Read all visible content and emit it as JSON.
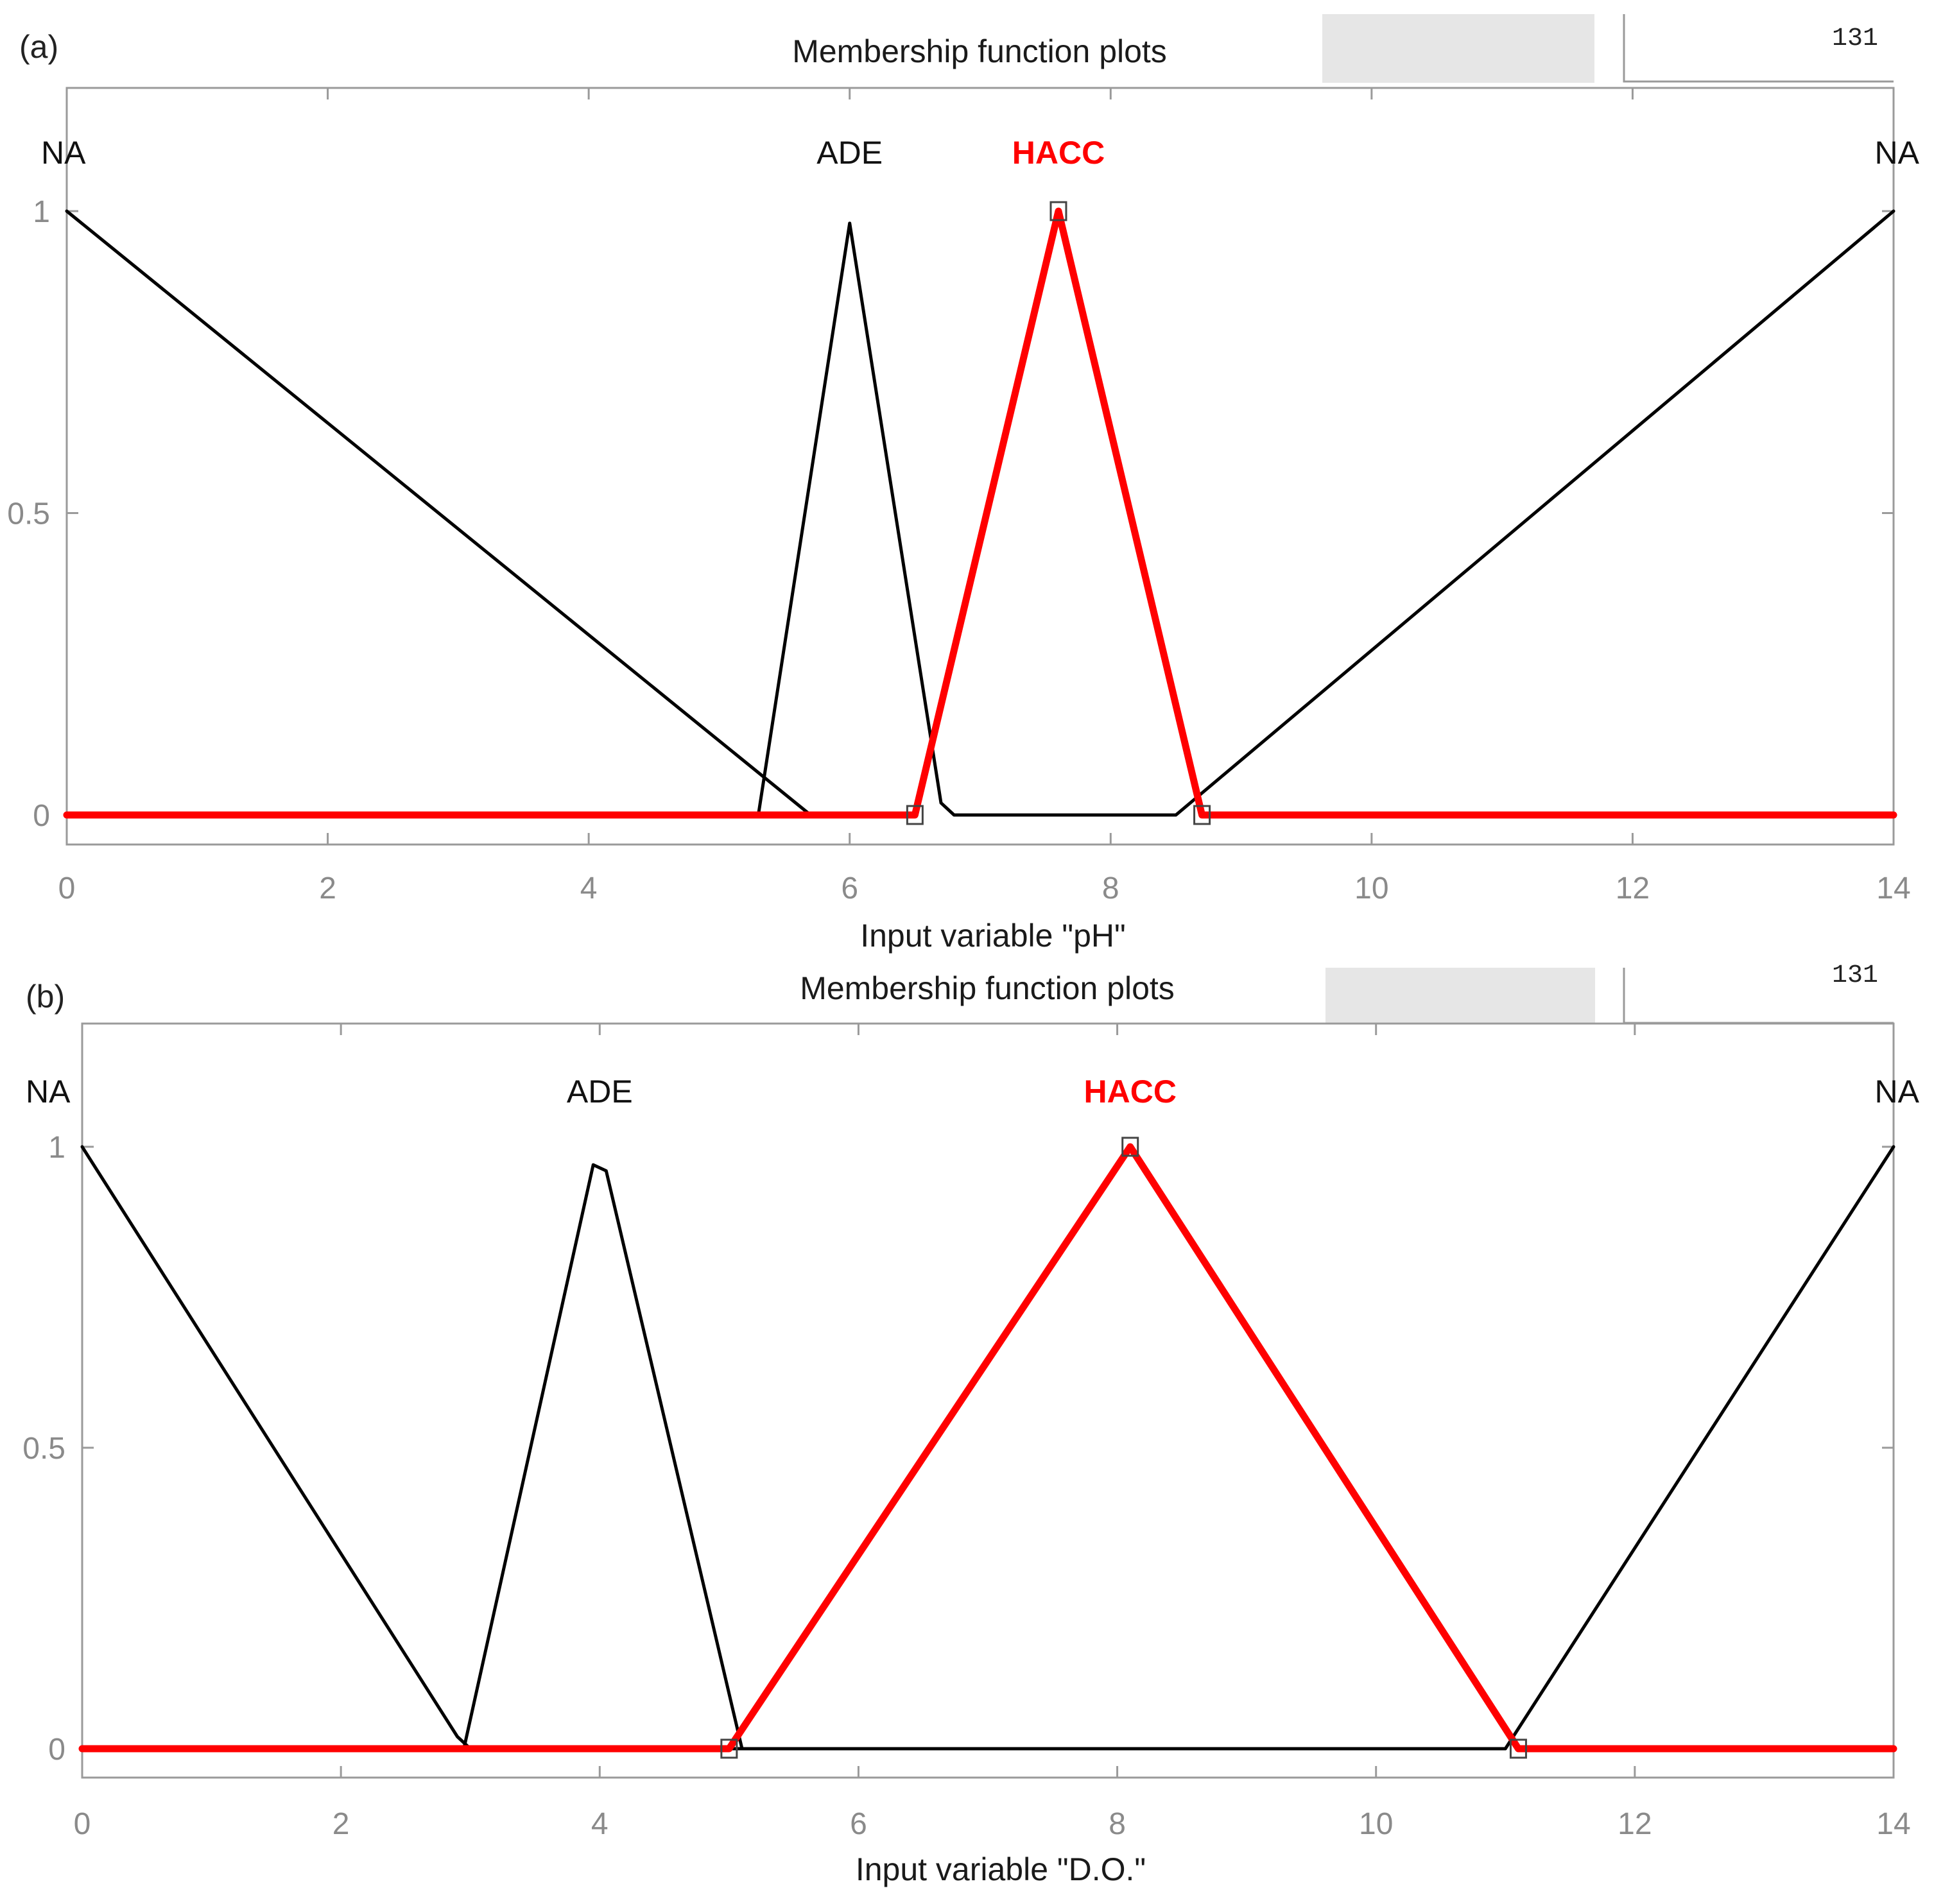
{
  "chart_data": [
    {
      "type": "line",
      "panel_label": "(a)",
      "title": "Membership function plots",
      "xlabel": "Input variable \"pH\"",
      "ylabel": "",
      "xlim": [
        0,
        14
      ],
      "ylim": [
        0,
        1
      ],
      "x_ticks": [
        "0",
        "2",
        "4",
        "6",
        "8",
        "10",
        "12",
        "14"
      ],
      "y_ticks": [
        "0",
        "0.5",
        "1"
      ],
      "toolbar_glyph": "131",
      "series": [
        {
          "name": "NA",
          "color": "#000000",
          "highlight": false,
          "label_x": 0,
          "x": [
            0,
            5.7
          ],
          "y": [
            1,
            0
          ]
        },
        {
          "name": "ADE",
          "color": "#000000",
          "highlight": false,
          "label_x": 6,
          "x": [
            5.3,
            6.0,
            6.7,
            6.8
          ],
          "y": [
            0,
            0.98,
            0.02,
            0
          ]
        },
        {
          "name": "HACC",
          "color": "#ff0000",
          "highlight": true,
          "label_x": 7.6,
          "x": [
            0,
            6.5,
            7.6,
            8.7,
            14
          ],
          "y": [
            0,
            0,
            1,
            0,
            0
          ]
        },
        {
          "name": "NA",
          "color": "#000000",
          "highlight": false,
          "label_x": 14,
          "x": [
            8.5,
            14
          ],
          "y": [
            0,
            1
          ]
        }
      ],
      "baseline_black": [
        6.8,
        8.5
      ],
      "markers": [
        [
          6.5,
          0
        ],
        [
          7.6,
          1
        ],
        [
          8.7,
          0
        ]
      ]
    },
    {
      "type": "line",
      "panel_label": "(b)",
      "title": "Membership function plots",
      "xlabel": "Input variable \"D.O.\"",
      "ylabel": "",
      "xlim": [
        0,
        14
      ],
      "ylim": [
        0,
        1
      ],
      "x_ticks": [
        "0",
        "2",
        "4",
        "6",
        "8",
        "10",
        "12",
        "14"
      ],
      "y_ticks": [
        "0",
        "0.5",
        "1"
      ],
      "toolbar_glyph": "131",
      "series": [
        {
          "name": "NA",
          "color": "#000000",
          "highlight": false,
          "label_x": 0,
          "x": [
            0,
            2.9,
            3.0
          ],
          "y": [
            1,
            0.02,
            0
          ]
        },
        {
          "name": "ADE",
          "color": "#000000",
          "highlight": false,
          "label_x": 4,
          "x": [
            2.95,
            3.95,
            4.05,
            5.1
          ],
          "y": [
            0,
            0.97,
            0.96,
            0
          ]
        },
        {
          "name": "HACC",
          "color": "#ff0000",
          "highlight": true,
          "label_x": 8.1,
          "x": [
            0,
            5.0,
            8.1,
            11.1,
            14
          ],
          "y": [
            0,
            0,
            1,
            0,
            0
          ]
        },
        {
          "name": "NA",
          "color": "#000000",
          "highlight": false,
          "label_x": 14,
          "x": [
            11.0,
            14
          ],
          "y": [
            0,
            1
          ]
        }
      ],
      "baseline_black": [
        5.0,
        11.0
      ],
      "markers": [
        [
          5.0,
          0
        ],
        [
          8.1,
          1
        ],
        [
          11.1,
          0
        ]
      ]
    }
  ]
}
